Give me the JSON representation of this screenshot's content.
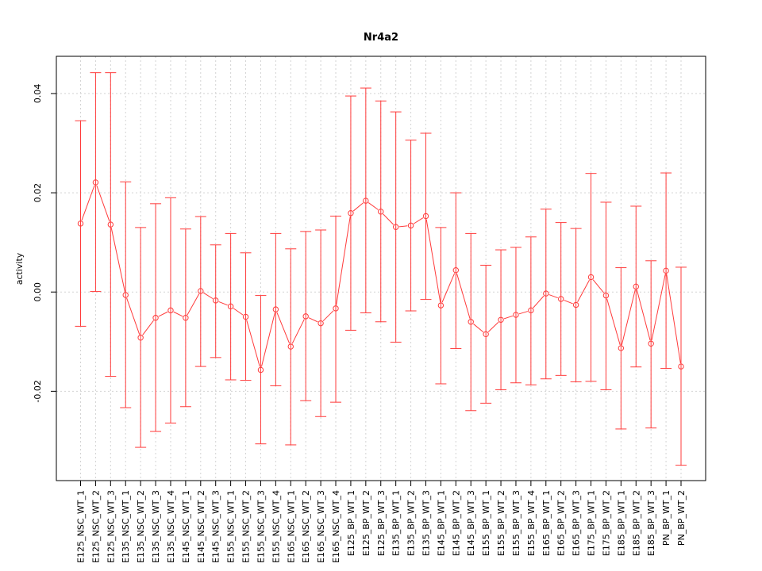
{
  "chart_data": {
    "type": "line",
    "title": "Nr4a2",
    "ylabel": "activity",
    "xlabel": "",
    "ylim": [
      -0.038,
      0.0475
    ],
    "yticks": [
      -0.02,
      0.0,
      0.02,
      0.04
    ],
    "ytick_labels": [
      "-0.02",
      "0.00",
      "0.02",
      "0.04"
    ],
    "grid": true,
    "color": "#ff3b3b",
    "categories": [
      "E125_NSC_WT_1",
      "E125_NSC_WT_2",
      "E125_NSC_WT_3",
      "E135_NSC_WT_1",
      "E135_NSC_WT_2",
      "E135_NSC_WT_3",
      "E135_NSC_WT_4",
      "E145_NSC_WT_1",
      "E145_NSC_WT_2",
      "E145_NSC_WT_3",
      "E155_NSC_WT_1",
      "E155_NSC_WT_2",
      "E155_NSC_WT_3",
      "E155_NSC_WT_4",
      "E165_NSC_WT_1",
      "E165_NSC_WT_2",
      "E165_NSC_WT_3",
      "E165_NSC_WT_4",
      "E125_BP_WT_1",
      "E125_BP_WT_2",
      "E125_BP_WT_3",
      "E135_BP_WT_1",
      "E135_BP_WT_2",
      "E135_BP_WT_3",
      "E145_BP_WT_1",
      "E145_BP_WT_2",
      "E145_BP_WT_3",
      "E155_BP_WT_1",
      "E155_BP_WT_2",
      "E155_BP_WT_3",
      "E155_BP_WT_4",
      "E165_BP_WT_1",
      "E165_BP_WT_2",
      "E165_BP_WT_3",
      "E175_BP_WT_1",
      "E175_BP_WT_2",
      "E185_BP_WT_1",
      "E185_BP_WT_2",
      "E185_BP_WT_3",
      "PN_BP_WT_1",
      "PN_BP_WT_2"
    ],
    "values": [
      0.0138,
      0.0221,
      0.0136,
      -0.0006,
      -0.0092,
      -0.0052,
      -0.0037,
      -0.0052,
      0.0002,
      -0.0017,
      -0.0029,
      -0.005,
      -0.0157,
      -0.0035,
      -0.011,
      -0.0049,
      -0.0063,
      -0.0033,
      0.0159,
      0.0184,
      0.0162,
      0.0131,
      0.0134,
      0.0153,
      -0.0027,
      0.0044,
      -0.006,
      -0.0085,
      -0.0056,
      -0.0046,
      -0.0037,
      -0.0003,
      -0.0014,
      -0.0026,
      0.003,
      -0.0007,
      -0.0113,
      0.0011,
      -0.0104,
      0.0043,
      -0.015
    ],
    "upper": [
      0.0345,
      0.0442,
      0.0442,
      0.0222,
      0.013,
      0.0178,
      0.019,
      0.0127,
      0.0152,
      0.0095,
      0.0118,
      0.0079,
      -0.0007,
      0.0118,
      0.0087,
      0.0122,
      0.0125,
      0.0153,
      0.0395,
      0.0411,
      0.0385,
      0.0363,
      0.0306,
      0.032,
      0.013,
      0.02,
      0.0118,
      0.0054,
      0.0085,
      0.009,
      0.0111,
      0.0167,
      0.014,
      0.0128,
      0.0239,
      0.0181,
      0.0049,
      0.0173,
      0.0063,
      0.024,
      0.005
    ],
    "lower": [
      -0.0069,
      0.0001,
      -0.017,
      -0.0233,
      -0.0313,
      -0.0281,
      -0.0264,
      -0.0231,
      -0.015,
      -0.0132,
      -0.0177,
      -0.0178,
      -0.0306,
      -0.0189,
      -0.0308,
      -0.0219,
      -0.0251,
      -0.0222,
      -0.0077,
      -0.0042,
      -0.006,
      -0.0101,
      -0.0038,
      -0.0015,
      -0.0185,
      -0.0114,
      -0.0239,
      -0.0224,
      -0.0197,
      -0.0183,
      -0.0187,
      -0.0175,
      -0.0168,
      -0.0181,
      -0.018,
      -0.0197,
      -0.0276,
      -0.0151,
      -0.0274,
      -0.0154,
      -0.0349
    ]
  }
}
